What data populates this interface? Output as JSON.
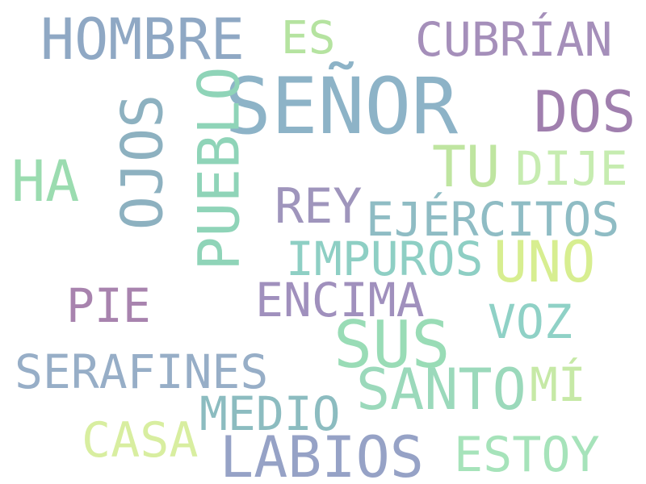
{
  "words": [
    {
      "text": "SEÑOR",
      "color": "#8db3c7"
    },
    {
      "text": "HOMBRE",
      "color": "#8fa8c4"
    },
    {
      "text": "ES",
      "color": "#b5e3a0"
    },
    {
      "text": "CUBRÍAN",
      "color": "#a58fba"
    },
    {
      "text": "DOS",
      "color": "#a07fae"
    },
    {
      "text": "PUEBLO",
      "color": "#8fd4b8"
    },
    {
      "text": "OJOS",
      "color": "#8db1c0"
    },
    {
      "text": "HA",
      "color": "#9bdcb0"
    },
    {
      "text": "TU",
      "color": "#bfe5a0"
    },
    {
      "text": "DIJE",
      "color": "#c6ecb0"
    },
    {
      "text": "REY",
      "color": "#9f95bc"
    },
    {
      "text": "EJÉRCITOS",
      "color": "#8fbcc4"
    },
    {
      "text": "IMPUROS",
      "color": "#8ecfc4"
    },
    {
      "text": "UNO",
      "color": "#d7ee90"
    },
    {
      "text": "PIE",
      "color": "#a883ae"
    },
    {
      "text": "ENCIMA",
      "color": "#a090bd"
    },
    {
      "text": "VOZ",
      "color": "#8fd1c6"
    },
    {
      "text": "SUS",
      "color": "#99dcb6"
    },
    {
      "text": "SERAFINES",
      "color": "#97aec7"
    },
    {
      "text": "SANTO",
      "color": "#9bd9bb"
    },
    {
      "text": "MÍ",
      "color": "#c6e9a6"
    },
    {
      "text": "MEDIO",
      "color": "#8cbcc0"
    },
    {
      "text": "CASA",
      "color": "#d8eea0"
    },
    {
      "text": "LABIOS",
      "color": "#96a2c6"
    },
    {
      "text": "ESTOY",
      "color": "#a6e3ba"
    }
  ]
}
